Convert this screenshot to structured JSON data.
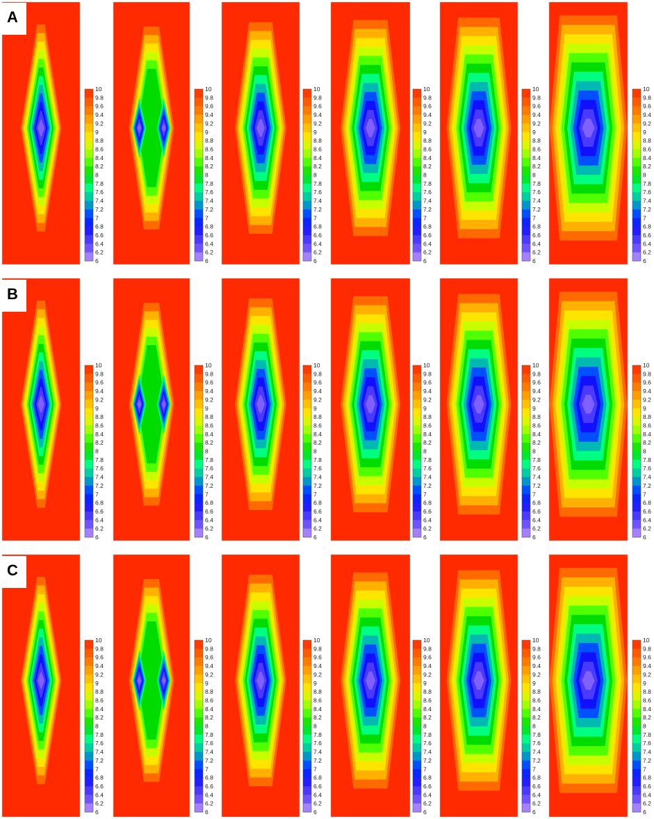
{
  "figure": {
    "rows": [
      {
        "label": "A"
      },
      {
        "label": "B"
      },
      {
        "label": "C"
      }
    ],
    "frames_per_row": 6,
    "colorbar": {
      "min": 6,
      "max": 10,
      "step": 0.2,
      "tick_labels": [
        "10",
        "9.8",
        "9.6",
        "9.4",
        "9.2",
        "9",
        "8.8",
        "8.6",
        "8.4",
        "8.2",
        "8",
        "7.8",
        "7.6",
        "7.4",
        "7.2",
        "7",
        "6.8",
        "6.6",
        "6.4",
        "6.2",
        "6"
      ],
      "colors": {
        "10": "#ff2a00",
        "9.6": "#ff6a00",
        "9.2": "#ffb000",
        "8.9": "#ffe400",
        "8.6": "#c8ff00",
        "8.3": "#50ff00",
        "8.0": "#00dc00",
        "7.7": "#00ff80",
        "7.4": "#00b9b0",
        "7.1": "#0050ff",
        "6.8": "#1010ff",
        "6.5": "#4a3aff",
        "6.2": "#8060ff",
        "6": "#c8a2ff"
      }
    }
  }
}
